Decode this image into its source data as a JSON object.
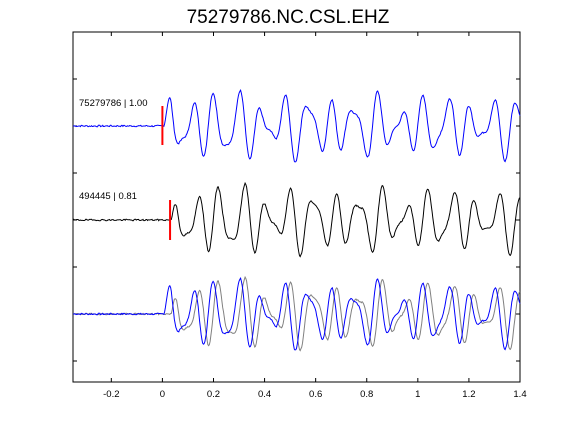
{
  "chart_data": {
    "type": "line",
    "title": "75279786.NC.CSL.EHZ",
    "xlabel": "",
    "ylabel": "",
    "xlim": [
      -0.35,
      1.4
    ],
    "x_ticks": [
      -0.2,
      0,
      0.2,
      0.4,
      0.6,
      0.8,
      1,
      1.2,
      1.4
    ],
    "x_tick_labels": [
      "-0.2",
      "0",
      "0.2",
      "0.4",
      "0.6",
      "0.8",
      "1",
      "1.2",
      "1.4"
    ],
    "grid": false,
    "colors": {
      "trace_primary": "#0000ff",
      "trace_secondary": "#000000",
      "trace_overlay_gray": "#808080",
      "pick_marker": "#ff0000"
    },
    "traces": [
      {
        "label": "75279786 | 1.00",
        "color": "#0000ff",
        "pick_time": 0.0,
        "panel": 1
      },
      {
        "label": "494445 | 0.81",
        "color": "#000000",
        "pick_time": 0.03,
        "panel": 2
      },
      {
        "label": "",
        "color": "overlay",
        "panel": 3
      }
    ]
  }
}
